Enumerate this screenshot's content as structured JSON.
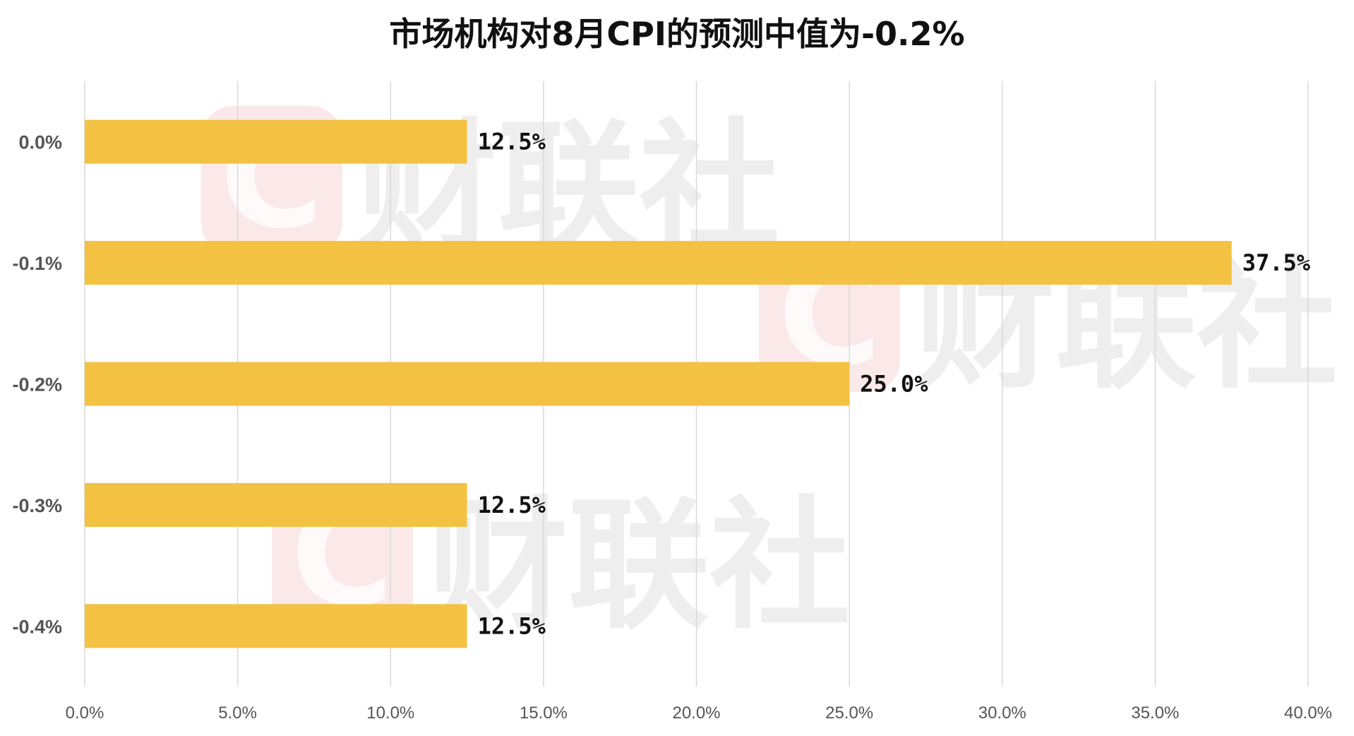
{
  "chart_data": {
    "type": "bar",
    "orientation": "horizontal",
    "title": "市场机构对8月CPI的预测中值为-0.2%",
    "categories": [
      "0.0%",
      "-0.1%",
      "-0.2%",
      "-0.3%",
      "-0.4%"
    ],
    "values": [
      12.5,
      37.5,
      25.0,
      12.5,
      12.5
    ],
    "data_labels": [
      "12.5%",
      "37.5%",
      "25.0%",
      "12.5%",
      "12.5%"
    ],
    "x_ticks": [
      "0.0%",
      "5.0%",
      "10.0%",
      "15.0%",
      "20.0%",
      "25.0%",
      "30.0%",
      "35.0%",
      "40.0%"
    ],
    "xlim": [
      0,
      40
    ],
    "grid": "vertical",
    "bar_color": "#F4C242",
    "grid_color": "#D9D9D9"
  },
  "watermark": {
    "text": "财联社",
    "logo_letter": "C",
    "logo_color": "#F2B6B6",
    "text_color": "#CFCFCF"
  }
}
